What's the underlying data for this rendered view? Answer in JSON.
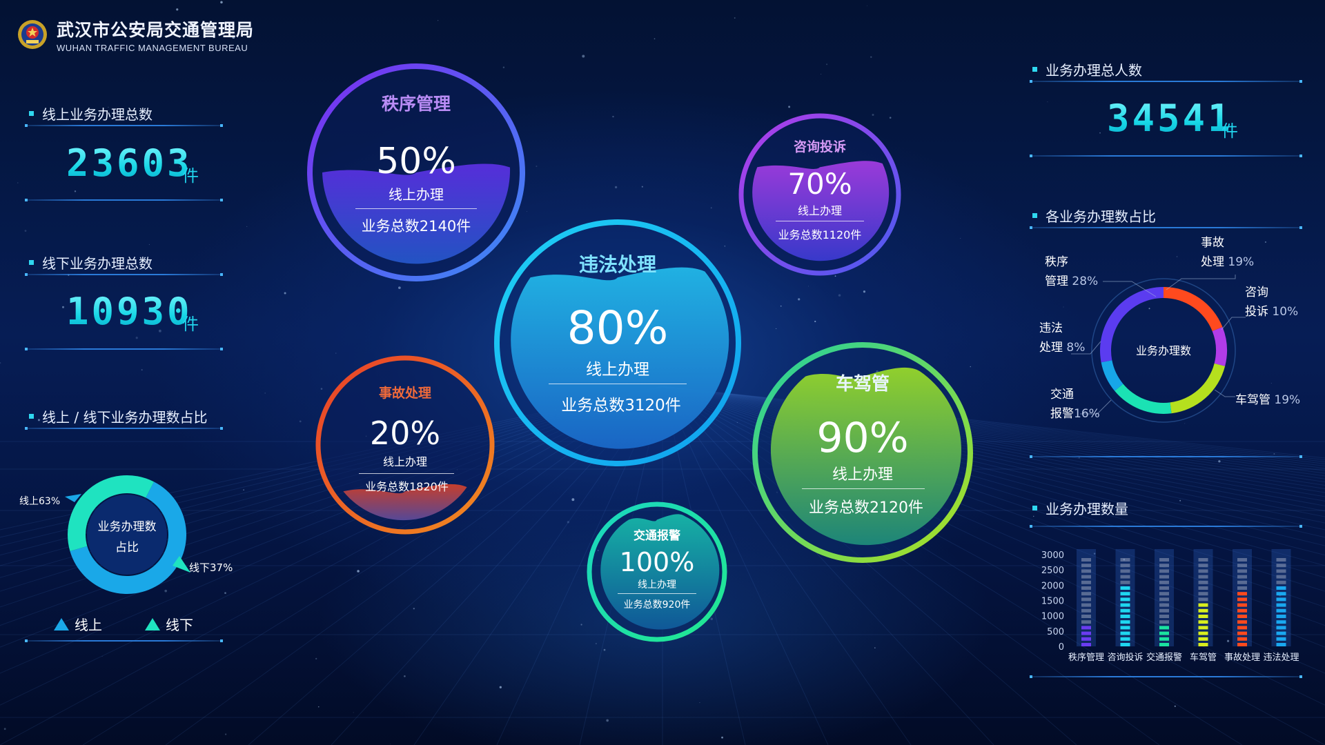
{
  "header": {
    "title_cn": "武汉市公安局交通管理局",
    "title_en": "WUHAN TRAFFIC MANAGEMENT BUREAU",
    "emblem_icon": "police-emblem-icon"
  },
  "left": {
    "online_total": {
      "label": "线上业务办理总数",
      "value": "23603",
      "unit": "件"
    },
    "offline_total": {
      "label": "线下业务办理总数",
      "value": "10930",
      "unit": "件"
    },
    "ratio": {
      "label": "线上 / 线下业务办理数占比",
      "center_line1": "业务办理数",
      "center_line2": "占比",
      "online_label": "线上63%",
      "offline_label": "线下37%",
      "online_share": 63,
      "offline_share": 37,
      "online_color": "#1aa8e8",
      "offline_color": "#1fe3c0",
      "legend_online": "线上",
      "legend_offline": "线下"
    }
  },
  "bubbles": {
    "order": {
      "title": "秩序管理",
      "pct": "50%",
      "sub": "线上办理",
      "total": "业务总数2140件",
      "level": 50
    },
    "consult": {
      "title": "咨询投诉",
      "pct": "70%",
      "sub": "线上办理",
      "total": "业务总数1120件",
      "level": 70
    },
    "violation": {
      "title": "违法处理",
      "pct": "80%",
      "sub": "线上办理",
      "total": "业务总数3120件",
      "level": 80
    },
    "accident": {
      "title": "事故处理",
      "pct": "20%",
      "sub": "线上办理",
      "total": "业务总数1820件",
      "level": 20
    },
    "vehicle": {
      "title": "车驾管",
      "pct": "90%",
      "sub": "线上办理",
      "total": "业务总数2120件",
      "level": 90
    },
    "alarm": {
      "title": "交通报警",
      "pct": "100%",
      "sub": "线上办理",
      "total": "业务总数920件",
      "level": 100
    }
  },
  "right": {
    "people_total": {
      "label": "业务办理总人数",
      "value": "34541",
      "unit": "件"
    },
    "share": {
      "label": "各业务办理数占比",
      "center": "业务办理数",
      "labels": {
        "order_name_1": "秩序",
        "order_name_2": "管理",
        "order_pct": "28%",
        "accident_name_1": "事故",
        "accident_name_2": "处理",
        "accident_pct": "19%",
        "consult_name_1": "咨询",
        "consult_name_2": "投诉",
        "consult_pct": "10%",
        "violation_name_1": "违法",
        "violation_name_2": "处理",
        "violation_pct": "8%",
        "alarm_name_1": "交通",
        "alarm_name_2": "报警",
        "alarm_pct": "16%",
        "vehicle_name": "车驾管",
        "vehicle_pct": "19%"
      }
    },
    "volume": {
      "label": "业务办理数量"
    }
  },
  "chart_data": [
    {
      "type": "pie",
      "title": "线上 / 线下业务办理数占比",
      "categories": [
        "线上",
        "线下"
      ],
      "values": [
        63,
        37
      ]
    },
    {
      "type": "pie",
      "title": "各业务办理数占比",
      "categories": [
        "事故处理",
        "咨询投诉",
        "车驾管",
        "交通报警",
        "违法处理",
        "秩序管理"
      ],
      "values": [
        19,
        10,
        19,
        16,
        8,
        28
      ],
      "colors": [
        "#ff4a1e",
        "#b13ce8",
        "#b5e01e",
        "#1be2b4",
        "#17a6e8",
        "#5b3cf0"
      ]
    },
    {
      "type": "bar",
      "title": "业务办理数量",
      "categories": [
        "秩序管理",
        "咨询投诉",
        "交通报警",
        "车驾管",
        "事故处理",
        "违法处理"
      ],
      "values": [
        700,
        2100,
        700,
        1500,
        1800,
        2100
      ],
      "colors": [
        "#6a3cf0",
        "#1fd6f0",
        "#1be2a0",
        "#d8ee1e",
        "#ff4a1e",
        "#1aa8f0"
      ],
      "ylim": [
        0,
        3000
      ],
      "yticks": [
        "3000",
        "2500",
        "2000",
        "1500",
        "1000",
        "500",
        "0"
      ]
    }
  ]
}
